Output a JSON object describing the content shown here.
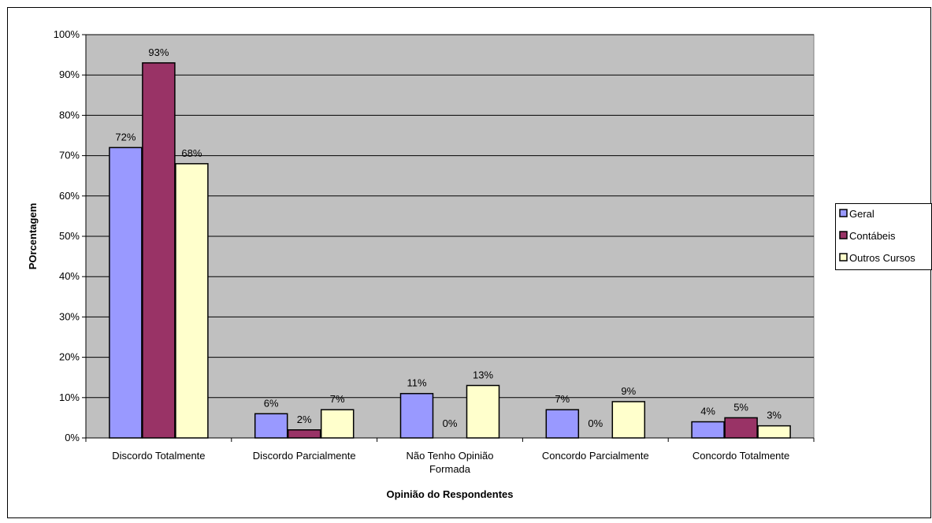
{
  "chart_data": {
    "type": "bar",
    "title": "",
    "xlabel": "Opinião do Respondentes",
    "ylabel": "POrcentagem",
    "categories": [
      [
        "Discordo Totalmente"
      ],
      [
        "Discordo Parcialmente"
      ],
      [
        "Não Tenho Opinião",
        "Formada"
      ],
      [
        "Concordo Parcialmente"
      ],
      [
        "Concordo Totalmente"
      ]
    ],
    "series": [
      {
        "name": "Geral",
        "values": [
          72,
          6,
          11,
          7,
          4
        ],
        "color": "#9999ff"
      },
      {
        "name": "Contábeis",
        "values": [
          93,
          2,
          0,
          0,
          5
        ],
        "color": "#993366"
      },
      {
        "name": "Outros Cursos",
        "values": [
          68,
          7,
          13,
          9,
          3
        ],
        "color": "#ffffcc"
      }
    ],
    "data_labels": [
      [
        "72%",
        "6%",
        "11%",
        "7%",
        "4%"
      ],
      [
        "93%",
        "2%",
        "0%",
        "0%",
        "5%"
      ],
      [
        "68%",
        "7%",
        "13%",
        "9%",
        "3%"
      ]
    ],
    "yticks": [
      "0%",
      "10%",
      "20%",
      "30%",
      "40%",
      "50%",
      "60%",
      "70%",
      "80%",
      "90%",
      "100%"
    ],
    "ylim": [
      0,
      100
    ],
    "grid": true,
    "legend_position": "right",
    "plot_background": "#c0c0c0"
  }
}
